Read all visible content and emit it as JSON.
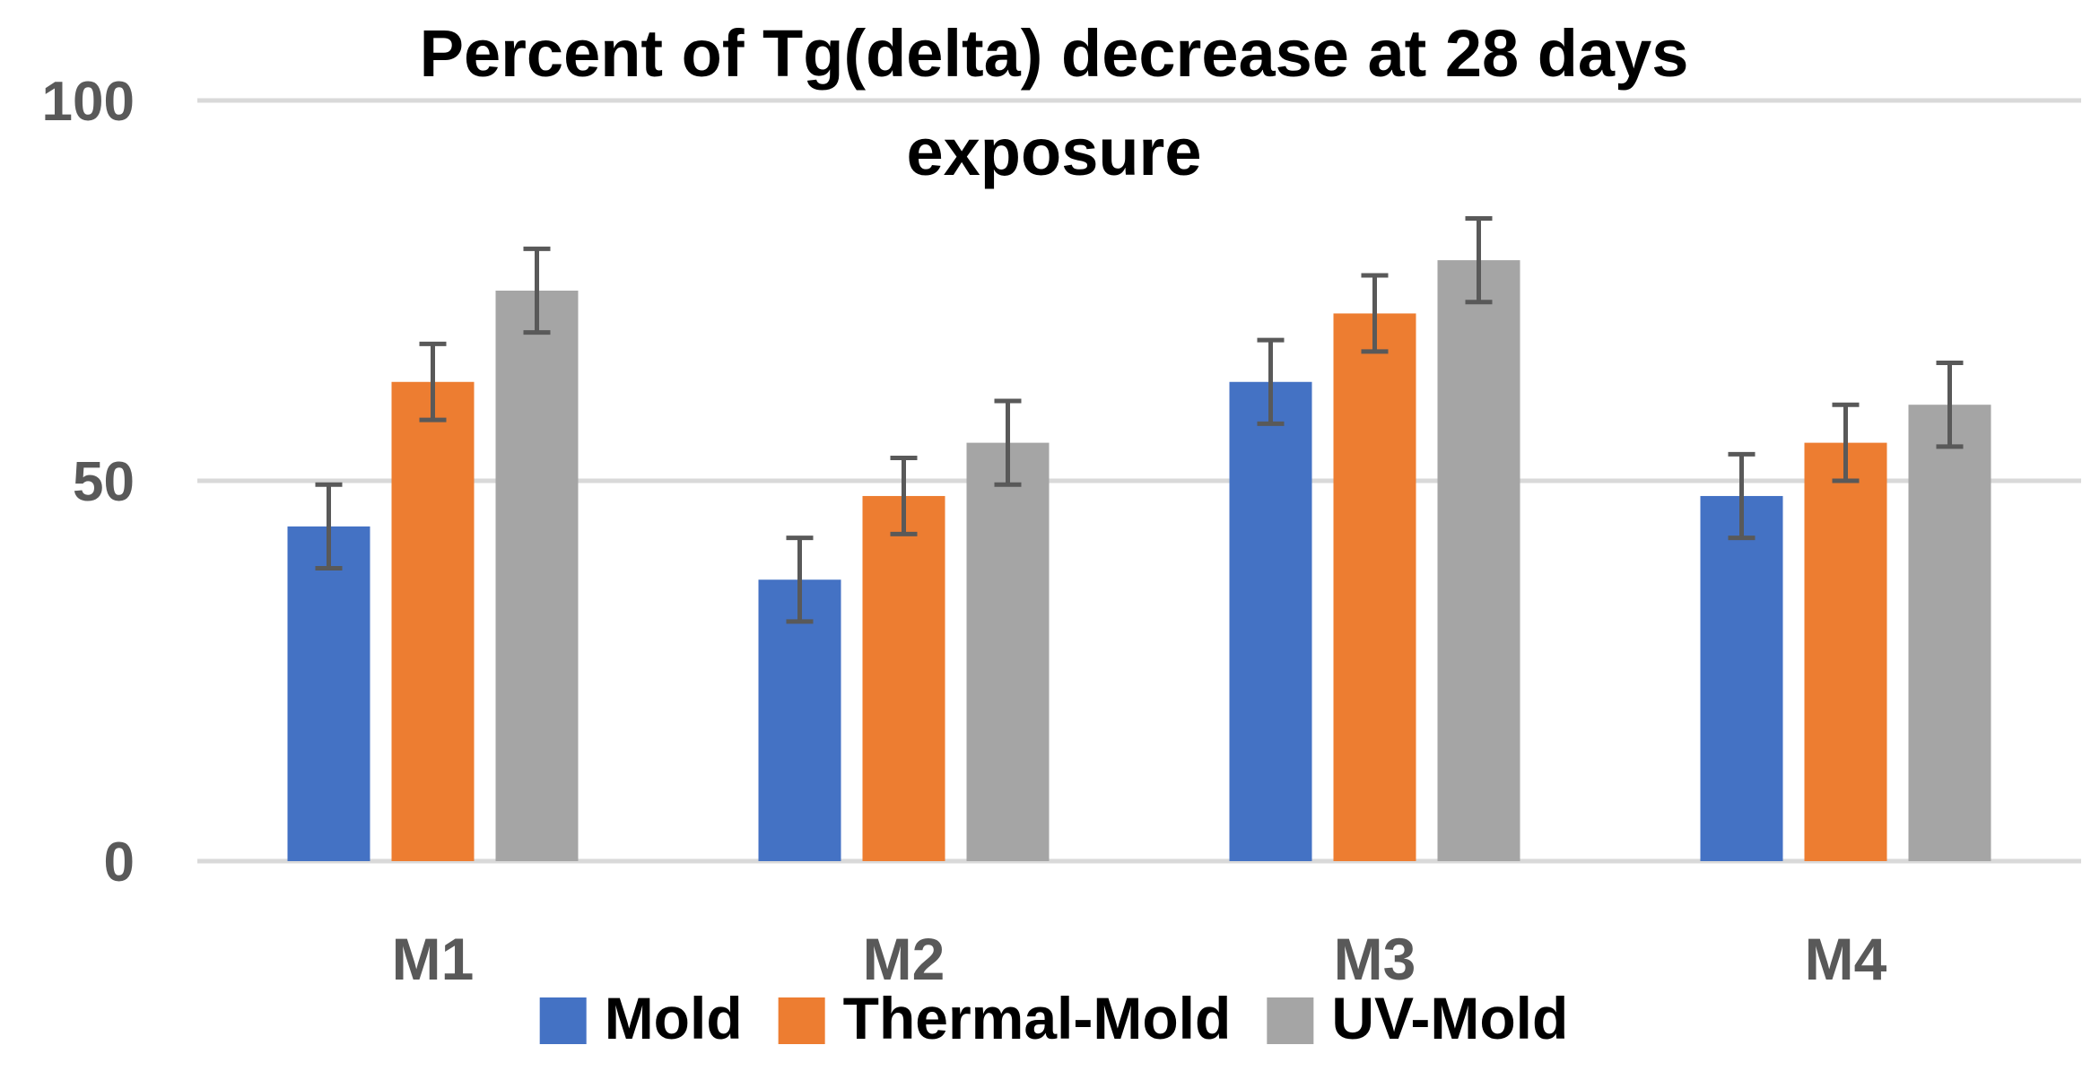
{
  "chart_data": {
    "type": "bar",
    "title_lines": [
      "Percent of Tg(delta) decrease at 28 days",
      "exposure"
    ],
    "xlabel": "",
    "ylabel": "",
    "categories": [
      "M1",
      "M2",
      "M3",
      "M4"
    ],
    "ylim": [
      0,
      100
    ],
    "yticks": [
      "0",
      "50",
      "100"
    ],
    "grid": true,
    "legend_position": "bottom",
    "series": [
      {
        "name": "Mold",
        "color": "#4472C4",
        "values": [
          44,
          37,
          63,
          48
        ],
        "errors": [
          5.5,
          5.5,
          5.5,
          5.5
        ]
      },
      {
        "name": "Thermal-Mold",
        "color": "#ED7D31",
        "values": [
          63,
          48,
          72,
          55
        ],
        "errors": [
          5.0,
          5.0,
          5.0,
          5.0
        ]
      },
      {
        "name": "UV-Mold",
        "color": "#A5A5A5",
        "values": [
          75,
          55,
          79,
          60
        ],
        "errors": [
          5.5,
          5.5,
          5.5,
          5.5
        ]
      }
    ]
  }
}
